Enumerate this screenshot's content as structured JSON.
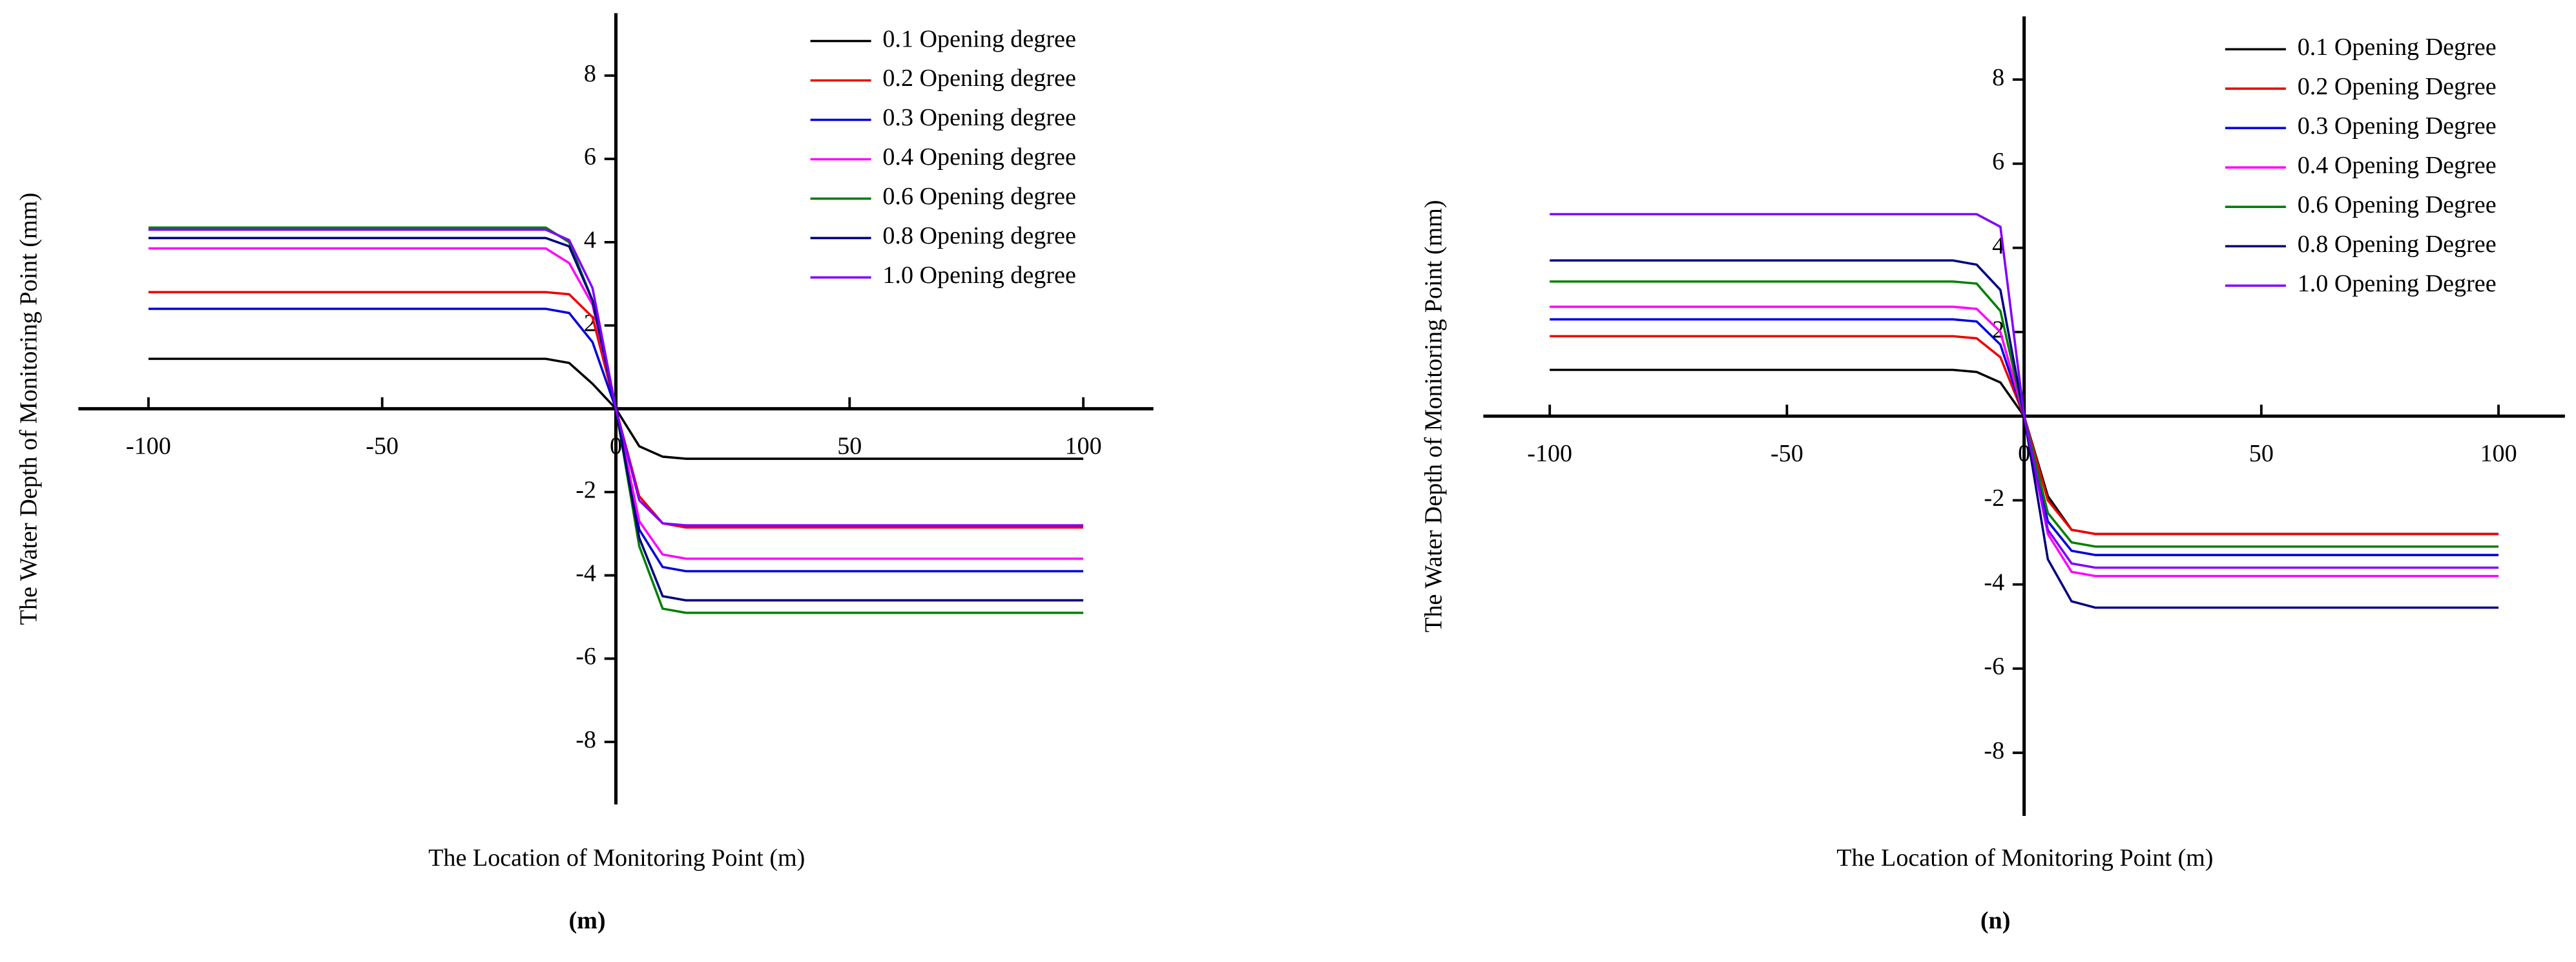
{
  "chart_data": [
    {
      "type": "line",
      "label": "(m)",
      "x_label": "The Location of Monitoring Point (m)",
      "y_label": "The Water Depth of Monitoring Point (mm)",
      "x": [
        -100,
        -15,
        -10,
        -5,
        0,
        5,
        10,
        15,
        100
      ],
      "xlim": [
        -115,
        115
      ],
      "ylim": [
        -9.5,
        9.5
      ],
      "xticks": [
        -100,
        -50,
        0,
        50,
        100
      ],
      "yticks": [
        -8,
        -6,
        -4,
        -2,
        2,
        4,
        6,
        8
      ],
      "legend": "upper right",
      "series": [
        {
          "name": "0.1 Opening degree",
          "color": "#000000",
          "values": [
            1.2,
            1.2,
            1.1,
            0.6,
            0,
            -0.9,
            -1.15,
            -1.2,
            -1.2
          ]
        },
        {
          "name": "0.2 Opening degree",
          "color": "#ee0000",
          "values": [
            2.8,
            2.8,
            2.75,
            2.2,
            0,
            -2.1,
            -2.75,
            -2.85,
            -2.85
          ]
        },
        {
          "name": "0.3 Opening degree",
          "color": "#0000e0",
          "values": [
            2.4,
            2.4,
            2.3,
            1.6,
            0,
            -2.9,
            -3.8,
            -3.9,
            -3.9
          ]
        },
        {
          "name": "0.4 Opening degree",
          "color": "#ff00ff",
          "values": [
            3.85,
            3.85,
            3.5,
            2.5,
            0,
            -2.7,
            -3.5,
            -3.6,
            -3.6
          ]
        },
        {
          "name": "0.6 Opening degree",
          "color": "#008000",
          "values": [
            4.35,
            4.35,
            4.0,
            2.6,
            0,
            -3.3,
            -4.8,
            -4.9,
            -4.9
          ]
        },
        {
          "name": "0.8 Opening degree",
          "color": "#000080",
          "values": [
            4.1,
            4.1,
            3.9,
            2.6,
            0,
            -3.1,
            -4.5,
            -4.6,
            -4.6
          ]
        },
        {
          "name": "1.0 Opening degree",
          "color": "#8000ff",
          "values": [
            4.3,
            4.3,
            4.05,
            2.9,
            0,
            -2.2,
            -2.75,
            -2.8,
            -2.8
          ]
        }
      ]
    },
    {
      "type": "line",
      "label": "(n)",
      "x_label": "The Location of Monitoring Point (m)",
      "y_label": "The Water Depth of Monitoring Point (mm)",
      "x": [
        -100,
        -15,
        -10,
        -5,
        0,
        5,
        10,
        15,
        100
      ],
      "xlim": [
        -114,
        114
      ],
      "ylim": [
        -9.5,
        9.5
      ],
      "xticks": [
        -100,
        -50,
        0,
        50,
        100
      ],
      "yticks": [
        -8,
        -6,
        -4,
        -2,
        2,
        4,
        6,
        8
      ],
      "legend": "upper right",
      "series": [
        {
          "name": "0.1 Opening Degree",
          "color": "#000000",
          "values": [
            1.1,
            1.1,
            1.05,
            0.8,
            0,
            -1.9,
            -2.7,
            -2.8,
            -2.8
          ]
        },
        {
          "name": "0.2 Opening Degree",
          "color": "#ee0000",
          "values": [
            1.9,
            1.9,
            1.85,
            1.4,
            0,
            -2.0,
            -2.7,
            -2.8,
            -2.8
          ]
        },
        {
          "name": "0.3 Opening Degree",
          "color": "#0000e0",
          "values": [
            2.3,
            2.3,
            2.25,
            1.7,
            0,
            -2.5,
            -3.2,
            -3.3,
            -3.3
          ]
        },
        {
          "name": "0.4 Opening Degree",
          "color": "#ff00ff",
          "values": [
            2.6,
            2.6,
            2.55,
            2.0,
            0,
            -2.8,
            -3.7,
            -3.8,
            -3.8
          ]
        },
        {
          "name": "0.6 Opening Degree",
          "color": "#008000",
          "values": [
            3.2,
            3.2,
            3.15,
            2.5,
            0,
            -2.3,
            -3.0,
            -3.1,
            -3.1
          ]
        },
        {
          "name": "0.8 Opening Degree",
          "color": "#000080",
          "values": [
            3.7,
            3.7,
            3.6,
            3.0,
            0,
            -3.4,
            -4.4,
            -4.55,
            -4.55
          ]
        },
        {
          "name": "1.0 Opening Degree",
          "color": "#8000ff",
          "values": [
            4.8,
            4.8,
            4.8,
            4.5,
            0,
            -2.7,
            -3.5,
            -3.6,
            -3.6
          ]
        }
      ]
    }
  ]
}
